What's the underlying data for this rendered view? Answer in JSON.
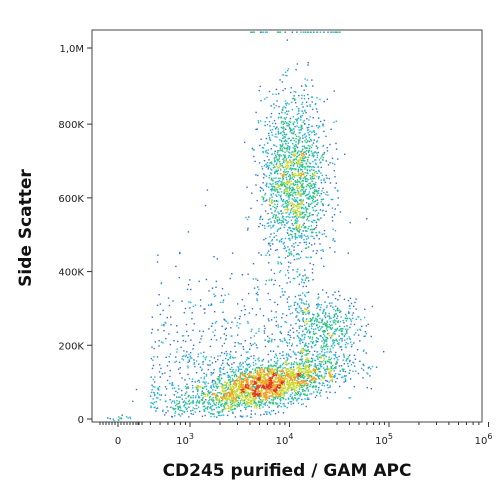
{
  "chart_data": {
    "type": "scatter",
    "plot_style": "density flow-cytometry dot plot",
    "xlabel": "CD245 purified / GAM APC",
    "ylabel": "Side Scatter",
    "x_scale": "biexponential (log above 10^2)",
    "xlim": [
      0,
      1000000
    ],
    "ylim": [
      0,
      1050000
    ],
    "x_ticks": [
      {
        "value": 0,
        "label": "0",
        "exp": ""
      },
      {
        "value": 1000,
        "label": "10",
        "exp": "3"
      },
      {
        "value": 10000,
        "label": "10",
        "exp": "4"
      },
      {
        "value": 100000,
        "label": "10",
        "exp": "5"
      },
      {
        "value": 1000000,
        "label": "10",
        "exp": "6"
      }
    ],
    "y_ticks": [
      {
        "value": 0,
        "label": "0"
      },
      {
        "value": 200000,
        "label": "200K"
      },
      {
        "value": 400000,
        "label": "400K"
      },
      {
        "value": 600000,
        "label": "600K"
      },
      {
        "value": 800000,
        "label": "800K"
      },
      {
        "value": 1000000,
        "label": "1,0M"
      }
    ],
    "color_scale": [
      "#1a1aa8",
      "#2f6fd6",
      "#22b4d6",
      "#2ec27e",
      "#c8d82a",
      "#f2a020",
      "#e03a1a"
    ],
    "populations": [
      {
        "center_x": 5500,
        "center_y": 90000,
        "spread_x_decades": 0.38,
        "spread_y": 45000,
        "relative_size": 0.42,
        "peak_density": "high"
      },
      {
        "center_x": 11000,
        "center_y": 650000,
        "spread_x_decades": 0.17,
        "spread_y": 115000,
        "relative_size": 0.33,
        "peak_density": "medium"
      },
      {
        "center_x": 22000,
        "center_y": 240000,
        "spread_x_decades": 0.2,
        "spread_y": 50000,
        "relative_size": 0.1,
        "peak_density": "low"
      },
      {
        "center_x": 3500,
        "center_y": 250000,
        "spread_x_decades": 0.55,
        "spread_y": 160000,
        "relative_size": 0.15,
        "peak_density": "sparse"
      }
    ]
  }
}
